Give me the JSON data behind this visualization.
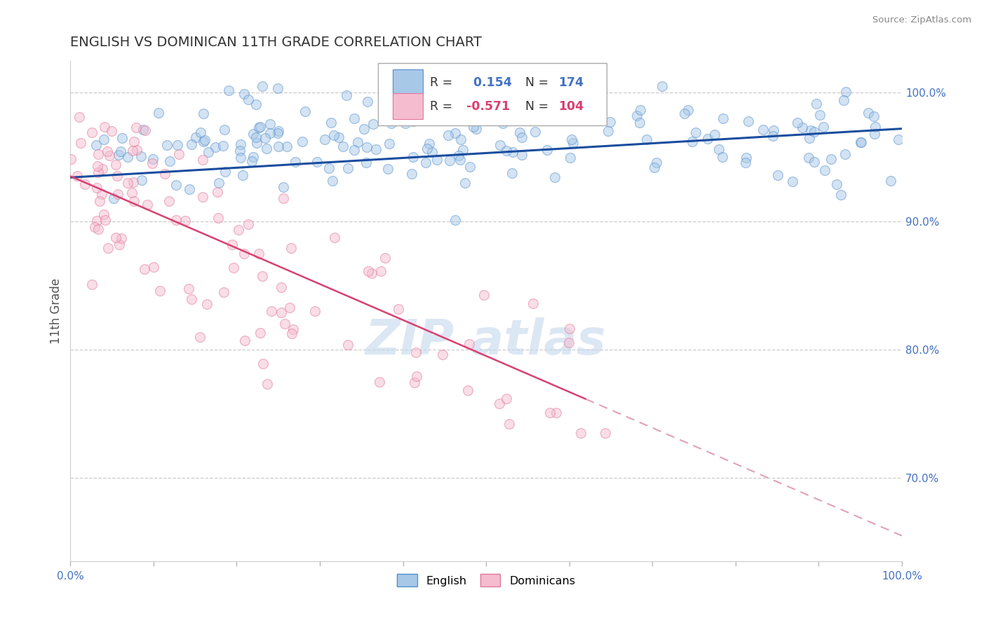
{
  "title": "ENGLISH VS DOMINICAN 11TH GRADE CORRELATION CHART",
  "source": "Source: ZipAtlas.com",
  "ylabel": "11th Grade",
  "xlim": [
    0.0,
    1.0
  ],
  "ylim": [
    0.635,
    1.025
  ],
  "right_yticks": [
    0.7,
    0.8,
    0.9,
    1.0
  ],
  "right_yticklabels": [
    "70.0%",
    "80.0%",
    "90.0%",
    "100.0%"
  ],
  "xticks": [
    0.0,
    0.1,
    0.2,
    0.3,
    0.4,
    0.5,
    0.6,
    0.7,
    0.8,
    0.9,
    1.0
  ],
  "xticklabels": [
    "0.0%",
    "",
    "",
    "",
    "",
    "",
    "",
    "",
    "",
    "",
    "100.0%"
  ],
  "english_color": "#a8c8e8",
  "english_edge_color": "#5590cc",
  "dominican_color": "#f5bcd0",
  "dominican_edge_color": "#e07898",
  "english_line_color": "#1a4d9e",
  "dominican_line_color": "#d94070",
  "dominican_dash_color": "#e0a0b8",
  "background_color": "#ffffff",
  "grid_color": "#cccccc",
  "title_color": "#333333",
  "watermark_color": "#c5d8ee",
  "marker_size": 100,
  "alpha_english": 0.5,
  "alpha_dominican": 0.5,
  "english_R": 0.154,
  "english_N": 174,
  "dominican_R": -0.571,
  "dominican_N": 104
}
